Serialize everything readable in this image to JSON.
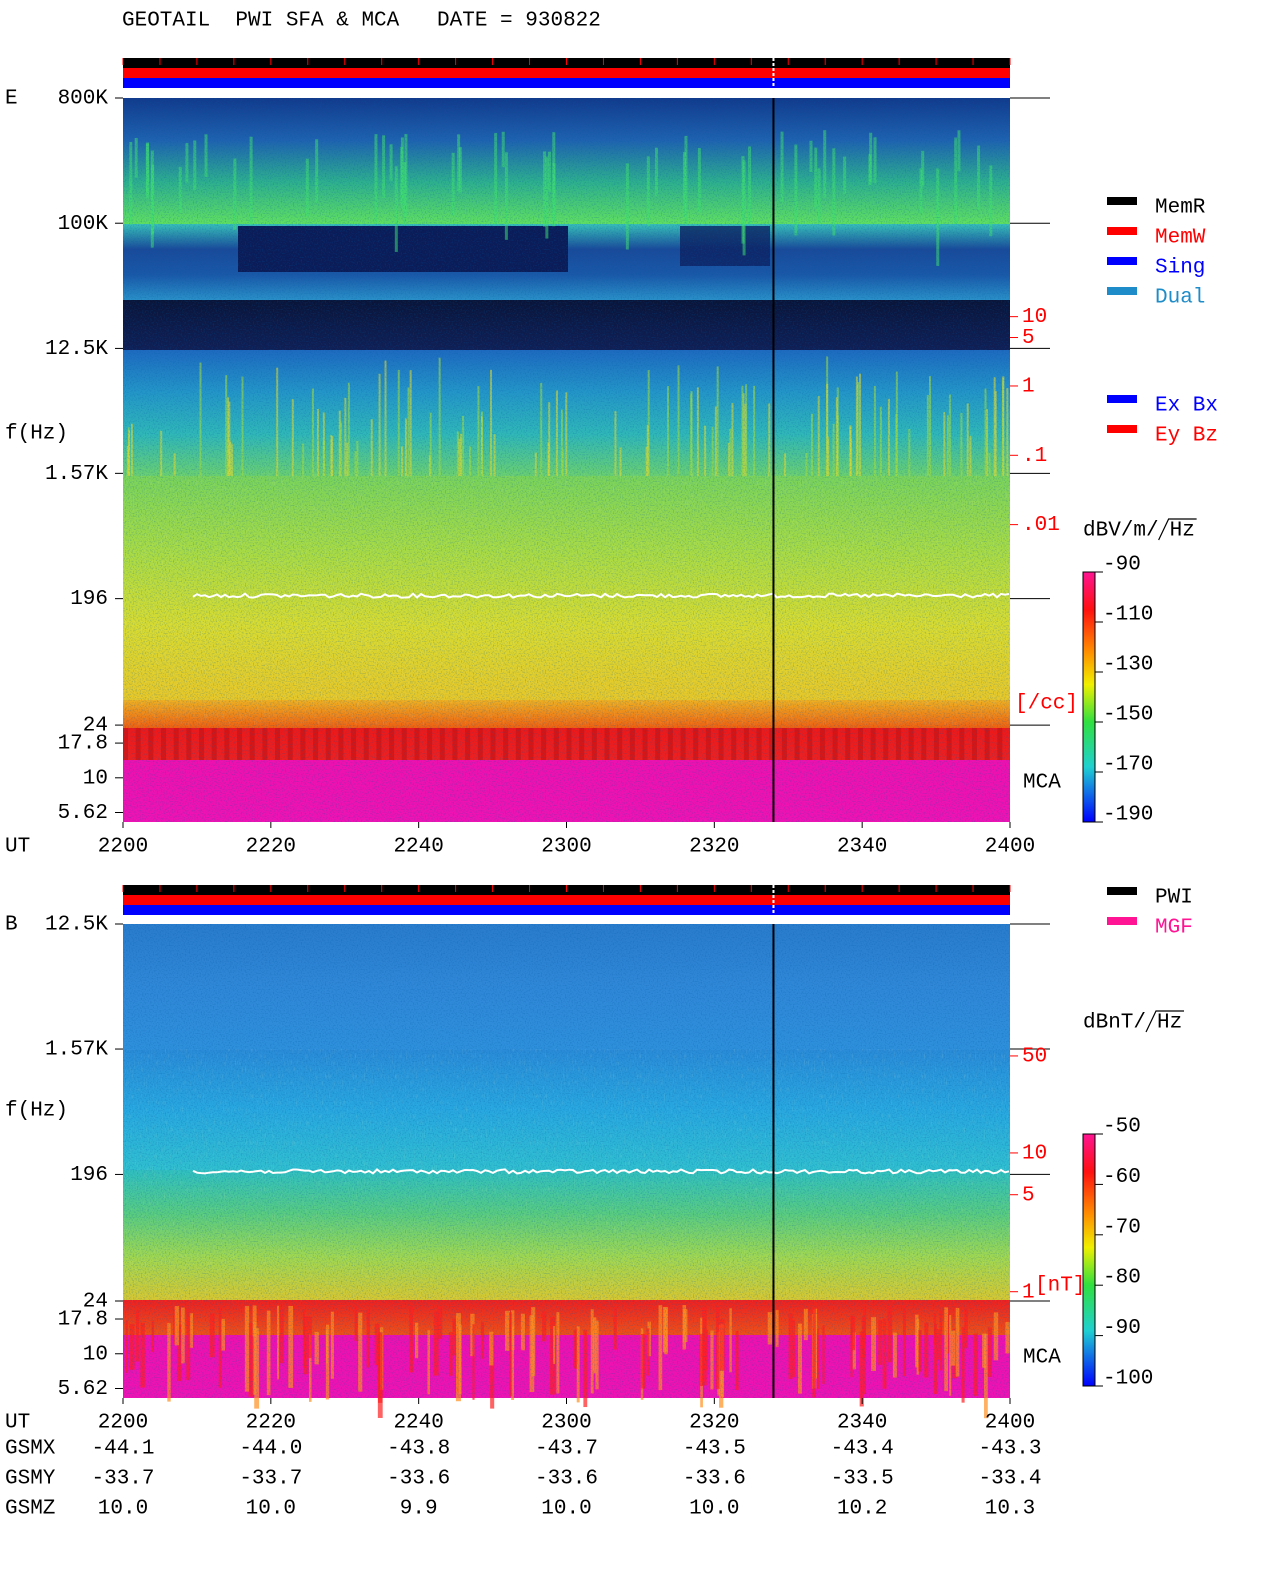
{
  "title": "GEOTAIL  PWI SFA & MCA   DATE = 930822",
  "chart_data": [
    {
      "type": "spectrogram",
      "panel": "E",
      "y_label": "f(Hz)",
      "x_label": "UT",
      "log_y": true,
      "xlim": [
        2200,
        2400
      ],
      "xticks": [
        2200,
        2220,
        2240,
        2300,
        2320,
        2340,
        2400
      ],
      "ylim": [
        4.8,
        800000
      ],
      "yticks": [
        {
          "value": 800000,
          "label": "800K"
        },
        {
          "value": 100000,
          "label": "100K"
        },
        {
          "value": 12500,
          "label": "12.5K"
        },
        {
          "value": 1570,
          "label": "1.57K"
        },
        196,
        24,
        17.8,
        10,
        5.62
      ],
      "receiver_label": "MCA",
      "legend": [
        {
          "name": "MemR",
          "color": "#000000"
        },
        {
          "name": "MemW",
          "color": "#ff0000"
        },
        {
          "name": "Sing",
          "color": "#0000ff"
        },
        {
          "name": "Dual",
          "color": "#1e8cc8"
        }
      ],
      "legend2": [
        {
          "name": "Ex Bx",
          "color": "#0000ff"
        },
        {
          "name": "Ey Bz",
          "color": "#ff0000"
        }
      ],
      "colorbar": {
        "unit": "dBV/m/",
        "unit_root": "Hz",
        "clim": [
          -190,
          -90
        ],
        "ticks": [
          -90,
          -110,
          -130,
          -150,
          -170,
          -190
        ]
      },
      "right_scale": {
        "unit": "[/cc]",
        "ticks": [
          10,
          5,
          1,
          {
            "value": 0.1,
            "label": ".1"
          },
          {
            "value": 0.01,
            "label": ".01"
          }
        ]
      },
      "vlines": [
        2328
      ]
    },
    {
      "type": "spectrogram",
      "panel": "B",
      "y_label": "f(Hz)",
      "x_label": "UT",
      "log_y": true,
      "xlim": [
        2200,
        2400
      ],
      "xticks": [
        2200,
        2220,
        2240,
        2300,
        2320,
        2340,
        2400
      ],
      "ylim": [
        4.8,
        12500
      ],
      "yticks": [
        {
          "value": 12500,
          "label": "12.5K"
        },
        {
          "value": 1570,
          "label": "1.57K"
        },
        196,
        24,
        17.8,
        10,
        5.62
      ],
      "receiver_label": "MCA",
      "legend": [
        {
          "name": "PWI",
          "color": "#000000"
        },
        {
          "name": "MGF",
          "color": "#ff1493"
        }
      ],
      "colorbar": {
        "unit": "dBnT/",
        "unit_root": "Hz",
        "clim": [
          -100,
          -50
        ],
        "ticks": [
          -50,
          -60,
          -70,
          -80,
          -90,
          -100
        ]
      },
      "right_scale": {
        "unit": "[nT]",
        "ticks": [
          50,
          10,
          5,
          1
        ]
      },
      "vlines": [
        2328
      ]
    }
  ],
  "orbit": {
    "rows": [
      {
        "name": "GSMX",
        "values": [
          -44.1,
          -44.0,
          -43.8,
          -43.7,
          -43.5,
          -43.4,
          -43.3
        ],
        "value_labels": [
          "-44.1",
          "-44.0",
          "-43.8",
          "-43.7",
          "-43.5",
          "-43.4",
          "-43.3"
        ]
      },
      {
        "name": "GSMY",
        "values": [
          -33.7,
          -33.7,
          -33.6,
          -33.6,
          -33.6,
          -33.5,
          -33.4
        ],
        "value_labels": [
          "-33.7",
          "-33.7",
          "-33.6",
          "-33.6",
          "-33.6",
          "-33.5",
          "-33.4"
        ]
      },
      {
        "name": "GSMZ",
        "values": [
          10.0,
          10.0,
          9.9,
          10.0,
          10.0,
          10.2,
          10.3
        ],
        "value_labels": [
          "10.0",
          "10.0",
          "9.9",
          "10.0",
          "10.0",
          "10.2",
          "10.3"
        ]
      }
    ]
  }
}
